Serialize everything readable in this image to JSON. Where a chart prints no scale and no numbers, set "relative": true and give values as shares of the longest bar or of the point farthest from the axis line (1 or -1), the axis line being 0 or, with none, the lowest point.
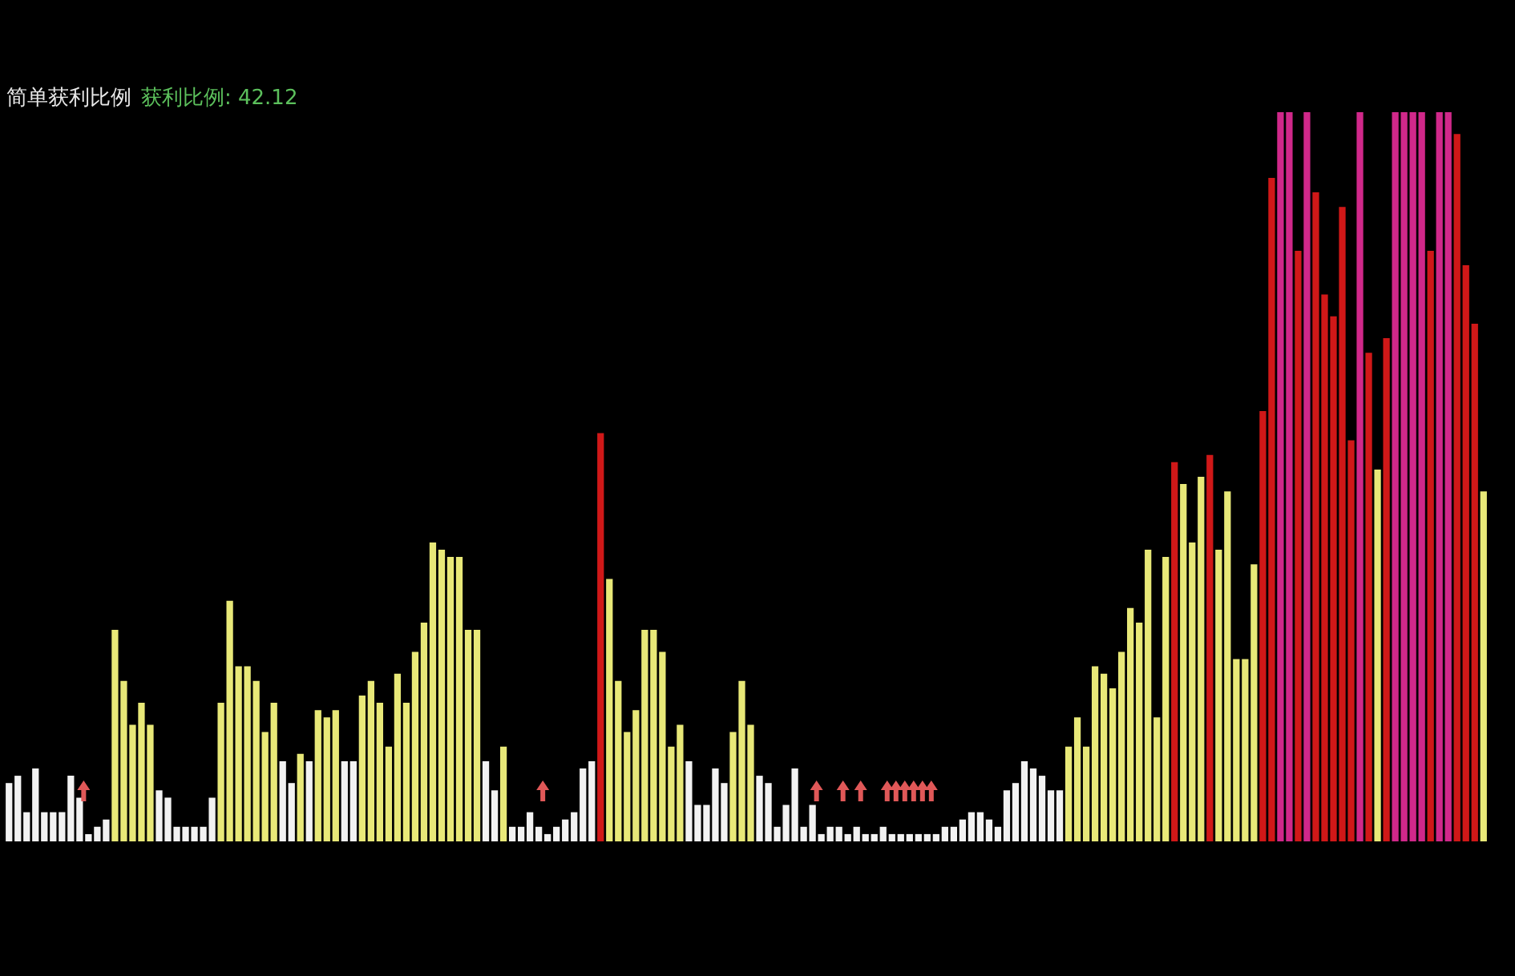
{
  "chart_data": {
    "type": "bar",
    "title": "简单获利比例",
    "annotations": [
      "获利比例: 42.12"
    ],
    "relative": true,
    "categories": [
      null,
      null,
      null,
      null,
      null,
      null,
      null,
      null,
      null,
      null,
      null,
      null,
      null,
      null,
      null,
      null,
      null,
      null,
      null,
      null,
      null,
      null,
      null,
      null,
      null,
      null,
      null,
      null,
      null,
      null,
      null,
      null,
      null,
      null,
      null,
      null,
      null,
      null,
      null,
      null,
      null,
      null,
      null,
      null,
      null,
      null,
      null,
      null,
      null,
      null,
      null,
      null,
      null,
      null,
      null,
      null,
      null,
      null,
      null,
      null,
      null,
      null,
      null,
      null,
      null,
      null,
      null,
      null,
      null,
      null,
      null,
      null,
      null,
      null,
      null,
      null,
      null,
      null,
      null,
      null,
      null,
      null,
      null,
      null,
      null,
      null,
      null,
      null,
      null,
      null,
      null,
      null,
      null,
      null,
      null,
      null,
      null,
      null,
      null,
      null,
      null,
      null,
      null,
      null,
      null,
      null,
      null,
      null,
      null,
      null,
      null,
      null,
      null,
      null,
      null,
      null,
      null,
      null,
      null,
      null,
      null,
      null,
      null,
      null,
      null,
      null,
      null,
      null,
      null,
      null,
      null,
      null,
      null,
      null,
      null,
      null,
      null,
      null,
      null,
      null,
      null,
      null,
      null,
      null,
      null,
      null,
      null,
      null,
      null,
      null,
      null,
      null,
      null,
      null,
      null,
      null,
      null,
      null,
      null,
      null,
      null,
      null,
      null,
      null,
      null,
      null,
      null,
      null
    ],
    "series": [
      {
        "type": "bar",
        "values": [
          0.08,
          0.09,
          0.04,
          0.1,
          0.04,
          0.04,
          0.04,
          0.09,
          0.06,
          0.01,
          0.02,
          0.03,
          0.29,
          0.22,
          0.16,
          0.19,
          0.16,
          0.07,
          0.06,
          0.02,
          0.02,
          0.02,
          0.02,
          0.06,
          0.19,
          0.33,
          0.24,
          0.24,
          0.22,
          0.15,
          0.19,
          0.11,
          0.08,
          0.12,
          0.11,
          0.18,
          0.17,
          0.18,
          0.11,
          0.11,
          0.2,
          0.22,
          0.19,
          0.13,
          0.23,
          0.19,
          0.26,
          0.3,
          0.41,
          0.4,
          0.39,
          0.39,
          0.29,
          0.29,
          0.11,
          0.07,
          0.13,
          0.02,
          0.02,
          0.04,
          0.02,
          0.01,
          0.02,
          0.03,
          0.04,
          0.1,
          0.11,
          0.56,
          0.36,
          0.22,
          0.15,
          0.18,
          0.29,
          0.29,
          0.26,
          0.13,
          0.16,
          0.11,
          0.05,
          0.05,
          0.1,
          0.08,
          0.15,
          0.22,
          0.16,
          0.09,
          0.08,
          0.02,
          0.05,
          0.1,
          0.02,
          0.05,
          0.01,
          0.02,
          0.02,
          0.01,
          0.02,
          0.01,
          0.01,
          0.02,
          0.01,
          0.01,
          0.01,
          0.01,
          0.01,
          0.01,
          0.02,
          0.02,
          0.03,
          0.04,
          0.04,
          0.03,
          0.02,
          0.07,
          0.08,
          0.11,
          0.1,
          0.09,
          0.07,
          0.07,
          0.13,
          0.17,
          0.13,
          0.24,
          0.23,
          0.21,
          0.26,
          0.32,
          0.3,
          0.4,
          0.17,
          0.39,
          0.52,
          0.49,
          0.41,
          0.5,
          0.53,
          0.4,
          0.48,
          0.25,
          0.25,
          0.38,
          0.59,
          0.91,
          1,
          1,
          0.81,
          1,
          0.89,
          0.75,
          0.72,
          0.87,
          0.55,
          1,
          0.67,
          0.51,
          0.69,
          1,
          1,
          1,
          1,
          0.81,
          1,
          1,
          0.97,
          0.79,
          0.71,
          0.48
        ],
        "colors": [
          "#f2f2f2",
          "#f2f2f2",
          "#f2f2f2",
          "#f2f2f2",
          "#f2f2f2",
          "#f2f2f2",
          "#f2f2f2",
          "#f2f2f2",
          "#f2f2f2",
          "#f2f2f2",
          "#f2f2f2",
          "#f2f2f2",
          "#e8e878",
          "#e8e878",
          "#e8e878",
          "#e8e878",
          "#e8e878",
          "#f2f2f2",
          "#f2f2f2",
          "#f2f2f2",
          "#f2f2f2",
          "#f2f2f2",
          "#f2f2f2",
          "#f2f2f2",
          "#e8e878",
          "#e8e878",
          "#e8e878",
          "#e8e878",
          "#e8e878",
          "#e8e878",
          "#e8e878",
          "#f2f2f2",
          "#f2f2f2",
          "#e8e878",
          "#f2f2f2",
          "#e8e878",
          "#e8e878",
          "#e8e878",
          "#f2f2f2",
          "#f2f2f2",
          "#e8e878",
          "#e8e878",
          "#e8e878",
          "#e8e878",
          "#e8e878",
          "#e8e878",
          "#e8e878",
          "#e8e878",
          "#e8e878",
          "#e8e878",
          "#e8e878",
          "#e8e878",
          "#e8e878",
          "#e8e878",
          "#f2f2f2",
          "#f2f2f2",
          "#e8e878",
          "#f2f2f2",
          "#f2f2f2",
          "#f2f2f2",
          "#f2f2f2",
          "#f2f2f2",
          "#f2f2f2",
          "#f2f2f2",
          "#f2f2f2",
          "#f2f2f2",
          "#f2f2f2",
          "#d01818",
          "#e8e878",
          "#e8e878",
          "#e8e878",
          "#e8e878",
          "#e8e878",
          "#e8e878",
          "#e8e878",
          "#e8e878",
          "#e8e878",
          "#f2f2f2",
          "#f2f2f2",
          "#f2f2f2",
          "#f2f2f2",
          "#f2f2f2",
          "#e8e878",
          "#e8e878",
          "#e8e878",
          "#f2f2f2",
          "#f2f2f2",
          "#f2f2f2",
          "#f2f2f2",
          "#f2f2f2",
          "#f2f2f2",
          "#f2f2f2",
          "#f2f2f2",
          "#f2f2f2",
          "#f2f2f2",
          "#f2f2f2",
          "#f2f2f2",
          "#f2f2f2",
          "#f2f2f2",
          "#f2f2f2",
          "#f2f2f2",
          "#f2f2f2",
          "#f2f2f2",
          "#f2f2f2",
          "#f2f2f2",
          "#f2f2f2",
          "#f2f2f2",
          "#f2f2f2",
          "#f2f2f2",
          "#f2f2f2",
          "#f2f2f2",
          "#f2f2f2",
          "#f2f2f2",
          "#f2f2f2",
          "#f2f2f2",
          "#f2f2f2",
          "#f2f2f2",
          "#f2f2f2",
          "#f2f2f2",
          "#f2f2f2",
          "#e8e878",
          "#e8e878",
          "#e8e878",
          "#e8e878",
          "#e8e878",
          "#e8e878",
          "#e8e878",
          "#e8e878",
          "#e8e878",
          "#e8e878",
          "#e8e878",
          "#e8e878",
          "#d01818",
          "#e8e878",
          "#e8e878",
          "#e8e878",
          "#d01818",
          "#e8e878",
          "#e8e878",
          "#e8e878",
          "#e8e878",
          "#e8e878",
          "#d01818",
          "#d01818",
          "#d0288a",
          "#d0288a",
          "#d01818",
          "#d0288a",
          "#d01818",
          "#d01818",
          "#d01818",
          "#d01818",
          "#d01818",
          "#d0288a",
          "#d01818",
          "#e8e878",
          "#d01818",
          "#d0288a",
          "#d0288a",
          "#d0288a",
          "#d0288a",
          "#d01818",
          "#d0288a",
          "#d0288a",
          "#d01818",
          "#d01818",
          "#d01818",
          "#e8e878"
        ]
      }
    ]
  }
}
